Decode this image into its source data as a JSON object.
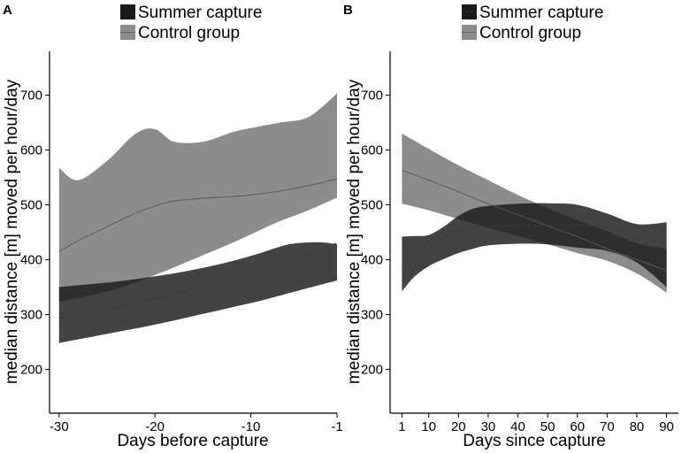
{
  "colors": {
    "summer": "#1a1a1a",
    "control": "#8c8c8c",
    "axis": "#000000"
  },
  "chart_data": [
    {
      "type": "line",
      "panel": "A",
      "legend": [
        {
          "label": "Summer capture",
          "series": "summer"
        },
        {
          "label": "Control group",
          "series": "control"
        }
      ],
      "xlabel": "Days before capture",
      "ylabel": "median distance [m] moved per hour/day",
      "xlim": [
        -31,
        -1
      ],
      "ylim": [
        120,
        780
      ],
      "xticks": [
        -30,
        -20,
        -10,
        -1
      ],
      "xtick_labels": [
        "-30",
        "-20",
        "-10",
        "-1"
      ],
      "yticks": [
        200,
        300,
        400,
        500,
        600,
        700
      ],
      "ytick_labels": [
        "200",
        "300",
        "400",
        "500",
        "600",
        "700"
      ],
      "series": [
        {
          "name": "Control group",
          "key": "control",
          "line_style": "solid",
          "x": [
            -30,
            -28,
            -25,
            -22,
            -20,
            -18,
            -15,
            -12,
            -10,
            -7,
            -4,
            -1
          ],
          "y": [
            415,
            435,
            460,
            485,
            498,
            507,
            512,
            515,
            518,
            525,
            535,
            547
          ],
          "lower": [
            323,
            330,
            342,
            358,
            372,
            386,
            408,
            430,
            446,
            470,
            490,
            513
          ],
          "upper": [
            567,
            545,
            580,
            630,
            638,
            615,
            615,
            632,
            640,
            650,
            660,
            703
          ]
        },
        {
          "name": "Summer capture",
          "key": "summer",
          "line_style": "dashed",
          "x": [
            -30,
            -27,
            -24,
            -21,
            -18,
            -15,
            -12,
            -9,
            -6,
            -3,
            -1
          ],
          "y": [
            293,
            303,
            313,
            325,
            338,
            352,
            367,
            382,
            400,
            418,
            430
          ],
          "lower": [
            248,
            258,
            268,
            278,
            289,
            301,
            313,
            325,
            339,
            353,
            362
          ],
          "upper": [
            350,
            355,
            360,
            367,
            375,
            385,
            397,
            412,
            428,
            432,
            428
          ]
        }
      ]
    },
    {
      "type": "line",
      "panel": "B",
      "legend": [
        {
          "label": "Summer capture",
          "series": "summer"
        },
        {
          "label": "Control group",
          "series": "control"
        }
      ],
      "xlabel": "Days since capture",
      "ylabel": "median distance [m] moved per hour/day",
      "xlim": [
        -3,
        94
      ],
      "ylim": [
        120,
        780
      ],
      "xticks": [
        1,
        10,
        20,
        30,
        40,
        50,
        60,
        70,
        80,
        90
      ],
      "xtick_labels": [
        "1",
        "10",
        "20",
        "30",
        "40",
        "50",
        "60",
        "70",
        "80",
        "90"
      ],
      "yticks": [
        200,
        300,
        400,
        500,
        600,
        700
      ],
      "ytick_labels": [
        "200",
        "300",
        "400",
        "500",
        "600",
        "700"
      ],
      "series": [
        {
          "name": "Control group",
          "key": "control",
          "line_style": "solid",
          "x": [
            1,
            10,
            20,
            30,
            40,
            50,
            60,
            70,
            80,
            90
          ],
          "y": [
            563,
            545,
            524,
            502,
            482,
            462,
            442,
            420,
            400,
            380
          ],
          "lower": [
            502,
            490,
            474,
            458,
            443,
            428,
            412,
            398,
            375,
            340
          ],
          "upper": [
            630,
            602,
            572,
            545,
            518,
            494,
            472,
            452,
            430,
            420
          ]
        },
        {
          "name": "Summer capture",
          "key": "summer",
          "line_style": "dashed",
          "x": [
            1,
            5,
            10,
            15,
            20,
            25,
            30,
            40,
            50,
            60,
            70,
            80,
            90
          ],
          "y": [
            390,
            408,
            428,
            443,
            452,
            457,
            460,
            462,
            463,
            463,
            458,
            438,
            405
          ],
          "lower": [
            342,
            368,
            388,
            401,
            412,
            420,
            426,
            429,
            428,
            422,
            416,
            395,
            350
          ],
          "upper": [
            442,
            443,
            445,
            460,
            480,
            493,
            498,
            502,
            503,
            500,
            484,
            465,
            468
          ]
        }
      ]
    }
  ]
}
